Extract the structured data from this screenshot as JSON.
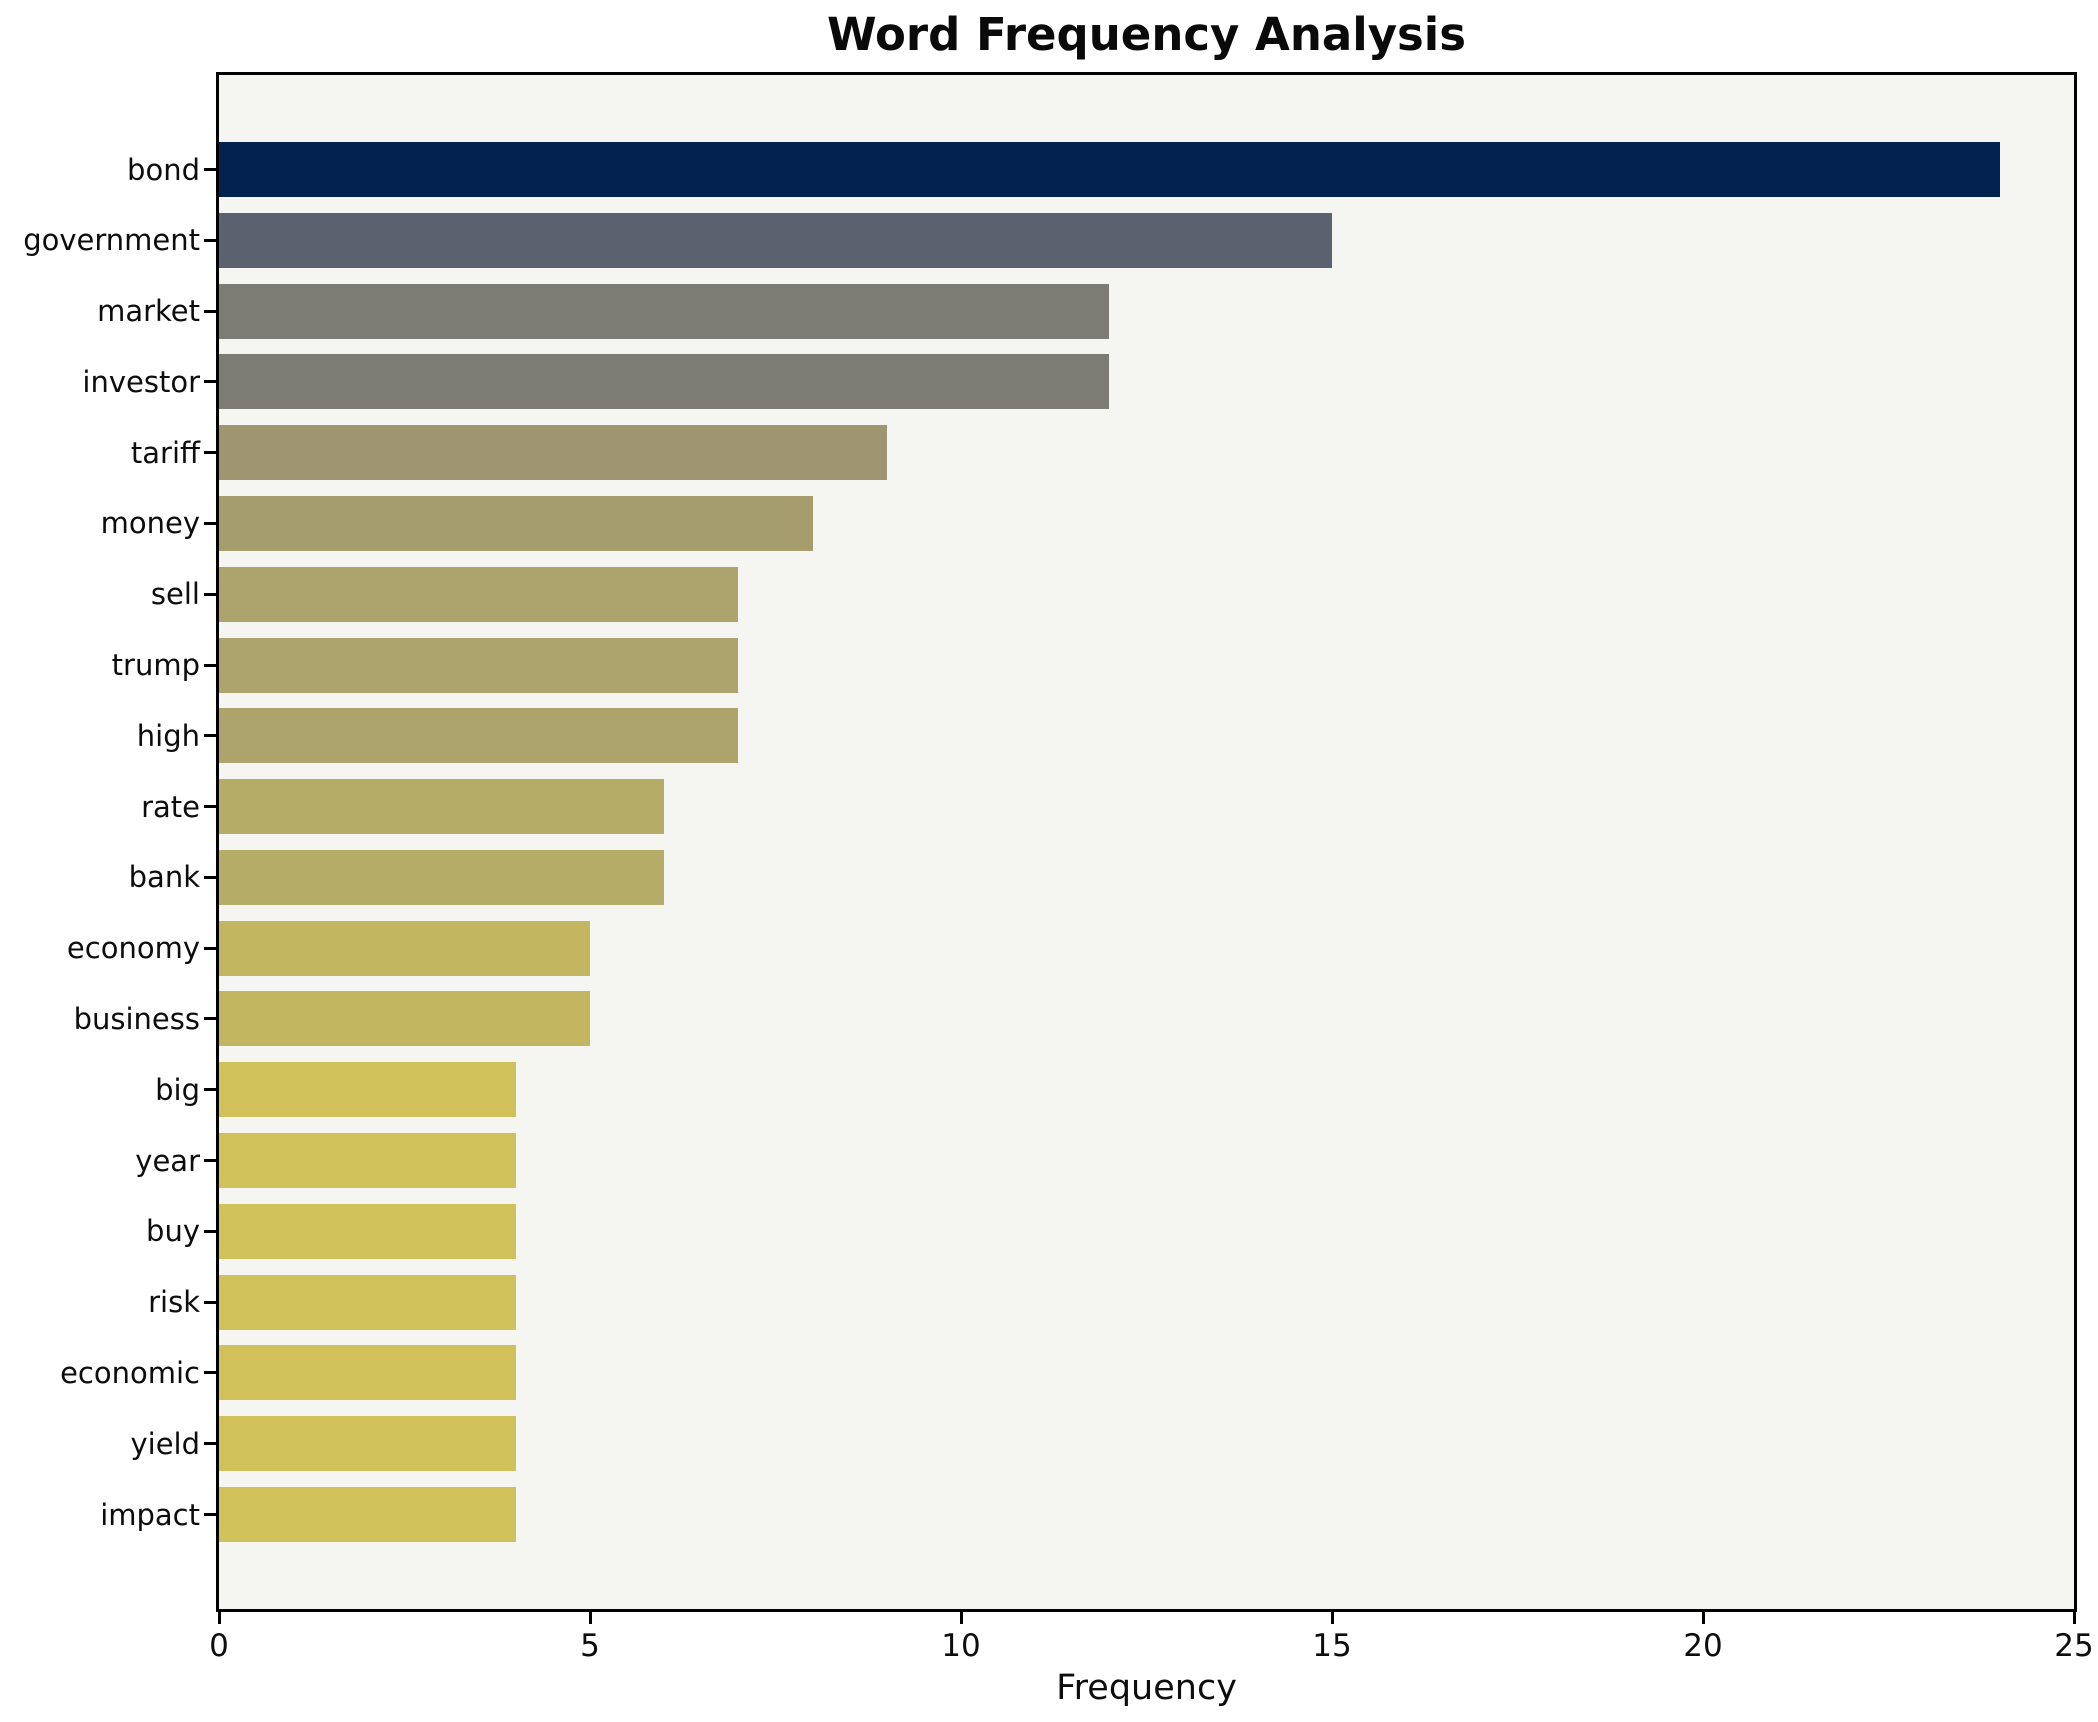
{
  "title": "Word Frequency Analysis",
  "chart_data": {
    "type": "bar",
    "orientation": "horizontal",
    "title": "Word Frequency Analysis",
    "xlabel": "Frequency",
    "ylabel": "",
    "categories": [
      "bond",
      "government",
      "market",
      "investor",
      "tariff",
      "money",
      "sell",
      "trump",
      "high",
      "rate",
      "bank",
      "economy",
      "business",
      "big",
      "year",
      "buy",
      "risk",
      "economic",
      "yield",
      "impact"
    ],
    "values": [
      24,
      15,
      12,
      12,
      9,
      8,
      7,
      7,
      7,
      6,
      6,
      5,
      5,
      4,
      4,
      4,
      4,
      4,
      4,
      4
    ],
    "bar_colors": [
      "#032250",
      "#5c616f",
      "#7c7b74",
      "#7c7b74",
      "#9d9670",
      "#a59d6e",
      "#aca46c",
      "#aca46c",
      "#aca46c",
      "#b5ac68",
      "#b5ac68",
      "#c2b660",
      "#c2b660",
      "#d0c15a",
      "#d0c15a",
      "#d0c15a",
      "#d0c15a",
      "#d0c15a",
      "#d0c15a",
      "#d0c15a"
    ],
    "xlim": [
      0,
      25
    ],
    "xticks": [
      0,
      5,
      10,
      15,
      20,
      25
    ],
    "grid": false,
    "legend": null,
    "colors": {
      "plot_background": "#f5f5f2",
      "figure_background": "#ffffff",
      "spine": "#000000",
      "text": "#0d0d0d"
    }
  }
}
